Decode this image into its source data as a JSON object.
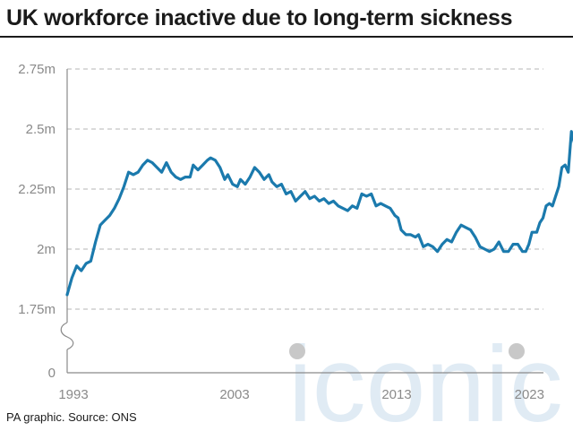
{
  "title": "UK workforce inactive due to long-term sickness",
  "source": "PA graphic. Source: ONS",
  "watermark": "iconic",
  "colors": {
    "line": "#1b7aad",
    "grid": "#b5b5b5",
    "axis": "#8a8a8a",
    "watermark": "#c8dcec"
  },
  "chart_data": {
    "type": "line",
    "title": "UK workforce inactive due to long-term sickness",
    "xlabel": "",
    "ylabel": "",
    "xlim": [
      1993,
      2023.5
    ],
    "ylim": [
      0,
      2.75
    ],
    "y_axis_break": true,
    "grid": "horizontal dashed",
    "y_ticks": [
      {
        "value": 0,
        "label": "0"
      },
      {
        "value": 1.75,
        "label": "1.75m"
      },
      {
        "value": 2.0,
        "label": "2m"
      },
      {
        "value": 2.25,
        "label": "2.25m"
      },
      {
        "value": 2.5,
        "label": "2.5m"
      },
      {
        "value": 2.75,
        "label": "2.75m"
      }
    ],
    "x_ticks": [
      {
        "value": 1993,
        "label": "1993"
      },
      {
        "value": 2003,
        "label": "2003"
      },
      {
        "value": 2013,
        "label": "2013"
      },
      {
        "value": 2023,
        "label": "2023"
      }
    ],
    "series": [
      {
        "points": [
          [
            1993.0,
            1.81
          ],
          [
            1993.3,
            1.88
          ],
          [
            1993.6,
            1.93
          ],
          [
            1993.9,
            1.91
          ],
          [
            1994.2,
            1.94
          ],
          [
            1994.5,
            1.95
          ],
          [
            1994.8,
            2.03
          ],
          [
            1995.1,
            2.1
          ],
          [
            1995.4,
            2.12
          ],
          [
            1995.7,
            2.14
          ],
          [
            1996.0,
            2.17
          ],
          [
            1996.3,
            2.21
          ],
          [
            1996.6,
            2.26
          ],
          [
            1996.9,
            2.32
          ],
          [
            1997.2,
            2.31
          ],
          [
            1997.5,
            2.32
          ],
          [
            1997.8,
            2.35
          ],
          [
            1998.1,
            2.37
          ],
          [
            1998.4,
            2.36
          ],
          [
            1998.7,
            2.34
          ],
          [
            1999.0,
            2.32
          ],
          [
            1999.3,
            2.36
          ],
          [
            1999.6,
            2.32
          ],
          [
            1999.9,
            2.3
          ],
          [
            2000.2,
            2.29
          ],
          [
            2000.5,
            2.3
          ],
          [
            2000.8,
            2.3
          ],
          [
            2001.0,
            2.35
          ],
          [
            2001.3,
            2.33
          ],
          [
            2001.6,
            2.35
          ],
          [
            2001.9,
            2.37
          ],
          [
            2002.1,
            2.38
          ],
          [
            2002.4,
            2.37
          ],
          [
            2002.7,
            2.34
          ],
          [
            2003.0,
            2.29
          ],
          [
            2003.2,
            2.31
          ],
          [
            2003.5,
            2.27
          ],
          [
            2003.8,
            2.26
          ],
          [
            2004.0,
            2.29
          ],
          [
            2004.3,
            2.27
          ],
          [
            2004.6,
            2.3
          ],
          [
            2004.9,
            2.34
          ],
          [
            2005.2,
            2.32
          ],
          [
            2005.5,
            2.29
          ],
          [
            2005.8,
            2.31
          ],
          [
            2006.0,
            2.28
          ],
          [
            2006.3,
            2.26
          ],
          [
            2006.6,
            2.27
          ],
          [
            2006.9,
            2.23
          ],
          [
            2007.2,
            2.24
          ],
          [
            2007.5,
            2.2
          ],
          [
            2007.8,
            2.22
          ],
          [
            2008.1,
            2.24
          ],
          [
            2008.4,
            2.21
          ],
          [
            2008.7,
            2.22
          ],
          [
            2009.0,
            2.2
          ],
          [
            2009.3,
            2.21
          ],
          [
            2009.6,
            2.19
          ],
          [
            2009.9,
            2.2
          ],
          [
            2010.2,
            2.18
          ],
          [
            2010.5,
            2.17
          ],
          [
            2010.8,
            2.16
          ],
          [
            2011.1,
            2.18
          ],
          [
            2011.4,
            2.17
          ],
          [
            2011.7,
            2.23
          ],
          [
            2012.0,
            2.22
          ],
          [
            2012.3,
            2.23
          ],
          [
            2012.6,
            2.18
          ],
          [
            2012.9,
            2.19
          ],
          [
            2013.2,
            2.18
          ],
          [
            2013.5,
            2.17
          ],
          [
            2013.8,
            2.14
          ],
          [
            2014.0,
            2.13
          ],
          [
            2014.2,
            2.08
          ],
          [
            2014.5,
            2.06
          ],
          [
            2014.8,
            2.06
          ],
          [
            2015.1,
            2.05
          ],
          [
            2015.3,
            2.06
          ],
          [
            2015.6,
            2.01
          ],
          [
            2015.9,
            2.02
          ],
          [
            2016.2,
            2.01
          ],
          [
            2016.5,
            1.99
          ],
          [
            2016.8,
            2.02
          ],
          [
            2017.1,
            2.04
          ],
          [
            2017.4,
            2.03
          ],
          [
            2017.7,
            2.07
          ],
          [
            2018.0,
            2.1
          ],
          [
            2018.3,
            2.09
          ],
          [
            2018.6,
            2.08
          ],
          [
            2018.9,
            2.05
          ],
          [
            2019.2,
            2.01
          ],
          [
            2019.5,
            2.0
          ],
          [
            2019.8,
            1.99
          ],
          [
            2020.1,
            2.0
          ],
          [
            2020.4,
            2.03
          ],
          [
            2020.7,
            1.99
          ],
          [
            2021.0,
            1.99
          ],
          [
            2021.3,
            2.02
          ],
          [
            2021.6,
            2.02
          ],
          [
            2021.9,
            1.99
          ],
          [
            2022.1,
            1.99
          ],
          [
            2022.3,
            2.02
          ],
          [
            2022.5,
            2.07
          ],
          [
            2022.8,
            2.07
          ],
          [
            2023.0,
            2.11
          ],
          [
            2023.2,
            2.13
          ],
          [
            2023.4,
            2.18
          ],
          [
            2023.6,
            2.19
          ],
          [
            2023.8,
            2.18
          ],
          [
            2024.0,
            2.22
          ],
          [
            2024.2,
            2.26
          ],
          [
            2024.4,
            2.34
          ],
          [
            2024.6,
            2.35
          ],
          [
            2024.8,
            2.32
          ],
          [
            2025.0,
            2.49
          ],
          [
            2025.2,
            2.44
          ],
          [
            2025.4,
            2.52
          ],
          [
            2025.6,
            2.52
          ]
        ]
      }
    ]
  }
}
